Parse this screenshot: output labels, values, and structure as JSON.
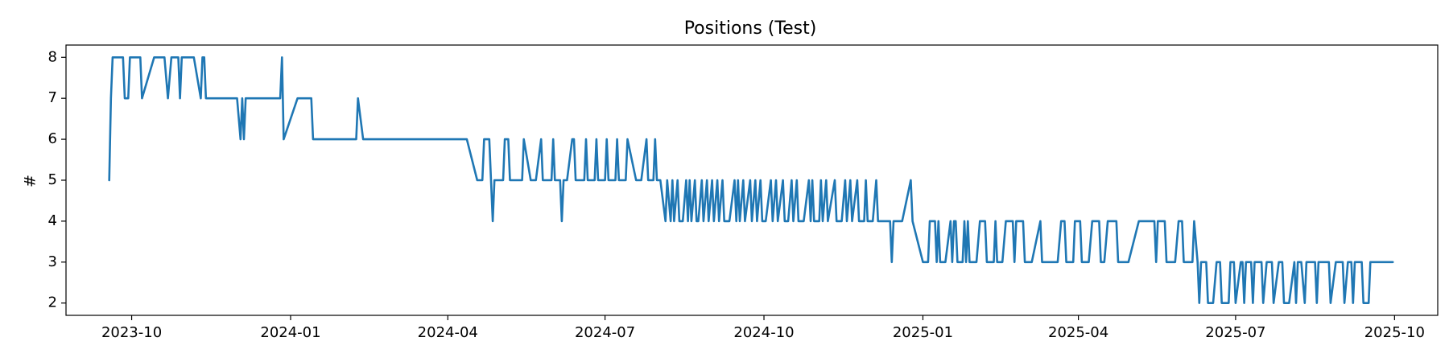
{
  "chart_data": {
    "type": "line",
    "title": "Positions (Test)",
    "xlabel": "",
    "ylabel": "#",
    "xlim": [
      "2023-08-24",
      "2025-10-26"
    ],
    "ylim": [
      1.7,
      8.3
    ],
    "grid": false,
    "legend": "none",
    "x_ticks": [
      "2023-10",
      "2024-01",
      "2024-04",
      "2024-07",
      "2024-10",
      "2025-01",
      "2025-04",
      "2025-07",
      "2025-10"
    ],
    "y_ticks": [
      "2",
      "3",
      "4",
      "5",
      "6",
      "7",
      "8"
    ],
    "series": [
      {
        "color": "#1f77b4",
        "points": [
          [
            "2023-09-18",
            5
          ],
          [
            "2023-09-19",
            7
          ],
          [
            "2023-09-20",
            8
          ],
          [
            "2023-09-26",
            8
          ],
          [
            "2023-09-27",
            7
          ],
          [
            "2023-09-29",
            7
          ],
          [
            "2023-09-30",
            8
          ],
          [
            "2023-10-06",
            8
          ],
          [
            "2023-10-07",
            7
          ],
          [
            "2023-10-14",
            8
          ],
          [
            "2023-10-20",
            8
          ],
          [
            "2023-10-22",
            7
          ],
          [
            "2023-10-24",
            8
          ],
          [
            "2023-10-28",
            8
          ],
          [
            "2023-10-29",
            7
          ],
          [
            "2023-10-30",
            8
          ],
          [
            "2023-11-06",
            8
          ],
          [
            "2023-11-10",
            7
          ],
          [
            "2023-11-11",
            8
          ],
          [
            "2023-11-12",
            8
          ],
          [
            "2023-11-13",
            7
          ],
          [
            "2023-12-01",
            7
          ],
          [
            "2023-12-03",
            6
          ],
          [
            "2023-12-04",
            7
          ],
          [
            "2023-12-05",
            6
          ],
          [
            "2023-12-06",
            7
          ],
          [
            "2023-12-26",
            7
          ],
          [
            "2023-12-27",
            8
          ],
          [
            "2023-12-28",
            6
          ],
          [
            "2024-01-05",
            7
          ],
          [
            "2024-01-13",
            7
          ],
          [
            "2024-01-14",
            6
          ],
          [
            "2024-02-08",
            6
          ],
          [
            "2024-02-09",
            7
          ],
          [
            "2024-02-12",
            6
          ],
          [
            "2024-04-12",
            6
          ],
          [
            "2024-04-18",
            5
          ],
          [
            "2024-04-21",
            5
          ],
          [
            "2024-04-22",
            6
          ],
          [
            "2024-04-25",
            6
          ],
          [
            "2024-04-27",
            4
          ],
          [
            "2024-04-28",
            5
          ],
          [
            "2024-05-03",
            5
          ],
          [
            "2024-05-04",
            6
          ],
          [
            "2024-05-06",
            6
          ],
          [
            "2024-05-07",
            5
          ],
          [
            "2024-05-14",
            5
          ],
          [
            "2024-05-15",
            6
          ],
          [
            "2024-05-19",
            5
          ],
          [
            "2024-05-22",
            5
          ],
          [
            "2024-05-25",
            6
          ],
          [
            "2024-05-26",
            5
          ],
          [
            "2024-05-31",
            5
          ],
          [
            "2024-06-01",
            6
          ],
          [
            "2024-06-02",
            5
          ],
          [
            "2024-06-05",
            5
          ],
          [
            "2024-06-06",
            4
          ],
          [
            "2024-06-07",
            5
          ],
          [
            "2024-06-09",
            5
          ],
          [
            "2024-06-12",
            6
          ],
          [
            "2024-06-13",
            6
          ],
          [
            "2024-06-14",
            5
          ],
          [
            "2024-06-19",
            5
          ],
          [
            "2024-06-20",
            6
          ],
          [
            "2024-06-21",
            5
          ],
          [
            "2024-06-25",
            5
          ],
          [
            "2024-06-26",
            6
          ],
          [
            "2024-06-27",
            5
          ],
          [
            "2024-07-01",
            5
          ],
          [
            "2024-07-02",
            6
          ],
          [
            "2024-07-03",
            5
          ],
          [
            "2024-07-07",
            5
          ],
          [
            "2024-07-08",
            6
          ],
          [
            "2024-07-09",
            5
          ],
          [
            "2024-07-13",
            5
          ],
          [
            "2024-07-14",
            6
          ],
          [
            "2024-07-19",
            5
          ],
          [
            "2024-07-22",
            5
          ],
          [
            "2024-07-25",
            6
          ],
          [
            "2024-07-26",
            5
          ],
          [
            "2024-07-29",
            5
          ],
          [
            "2024-07-30",
            6
          ],
          [
            "2024-07-31",
            5
          ],
          [
            "2024-08-02",
            5
          ],
          [
            "2024-08-05",
            4
          ],
          [
            "2024-08-06",
            5
          ],
          [
            "2024-08-08",
            4
          ],
          [
            "2024-08-09",
            5
          ],
          [
            "2024-08-10",
            4
          ],
          [
            "2024-08-12",
            5
          ],
          [
            "2024-08-13",
            4
          ],
          [
            "2024-08-15",
            4
          ],
          [
            "2024-08-17",
            5
          ],
          [
            "2024-08-18",
            4
          ],
          [
            "2024-08-19",
            5
          ],
          [
            "2024-08-20",
            4
          ],
          [
            "2024-08-22",
            5
          ],
          [
            "2024-08-23",
            4
          ],
          [
            "2024-08-24",
            4
          ],
          [
            "2024-08-26",
            5
          ],
          [
            "2024-08-27",
            4
          ],
          [
            "2024-08-29",
            5
          ],
          [
            "2024-08-30",
            4
          ],
          [
            "2024-09-01",
            5
          ],
          [
            "2024-09-02",
            4
          ],
          [
            "2024-09-04",
            5
          ],
          [
            "2024-09-05",
            4
          ],
          [
            "2024-09-07",
            5
          ],
          [
            "2024-09-08",
            4
          ],
          [
            "2024-09-11",
            4
          ],
          [
            "2024-09-14",
            5
          ],
          [
            "2024-09-15",
            4
          ],
          [
            "2024-09-16",
            5
          ],
          [
            "2024-09-17",
            4
          ],
          [
            "2024-09-19",
            5
          ],
          [
            "2024-09-20",
            4
          ],
          [
            "2024-09-23",
            5
          ],
          [
            "2024-09-24",
            4
          ],
          [
            "2024-09-26",
            5
          ],
          [
            "2024-09-27",
            4
          ],
          [
            "2024-09-29",
            5
          ],
          [
            "2024-09-30",
            4
          ],
          [
            "2024-10-02",
            4
          ],
          [
            "2024-10-05",
            5
          ],
          [
            "2024-10-06",
            4
          ],
          [
            "2024-10-08",
            5
          ],
          [
            "2024-10-09",
            4
          ],
          [
            "2024-10-12",
            5
          ],
          [
            "2024-10-13",
            4
          ],
          [
            "2024-10-15",
            4
          ],
          [
            "2024-10-17",
            5
          ],
          [
            "2024-10-18",
            4
          ],
          [
            "2024-10-20",
            5
          ],
          [
            "2024-10-21",
            4
          ],
          [
            "2024-10-24",
            4
          ],
          [
            "2024-10-27",
            5
          ],
          [
            "2024-10-28",
            4
          ],
          [
            "2024-10-29",
            5
          ],
          [
            "2024-10-30",
            4
          ],
          [
            "2024-11-02",
            4
          ],
          [
            "2024-11-03",
            5
          ],
          [
            "2024-11-04",
            4
          ],
          [
            "2024-11-06",
            5
          ],
          [
            "2024-11-07",
            4
          ],
          [
            "2024-11-11",
            5
          ],
          [
            "2024-11-12",
            4
          ],
          [
            "2024-11-15",
            4
          ],
          [
            "2024-11-17",
            5
          ],
          [
            "2024-11-18",
            4
          ],
          [
            "2024-11-20",
            5
          ],
          [
            "2024-11-21",
            4
          ],
          [
            "2024-11-24",
            5
          ],
          [
            "2024-11-25",
            4
          ],
          [
            "2024-11-28",
            4
          ],
          [
            "2024-11-29",
            5
          ],
          [
            "2024-11-30",
            4
          ],
          [
            "2024-12-03",
            4
          ],
          [
            "2024-12-05",
            5
          ],
          [
            "2024-12-06",
            4
          ],
          [
            "2024-12-13",
            4
          ],
          [
            "2024-12-14",
            3
          ],
          [
            "2024-12-15",
            4
          ],
          [
            "2024-12-20",
            4
          ],
          [
            "2024-12-25",
            5
          ],
          [
            "2024-12-26",
            4
          ],
          [
            "2025-01-01",
            3
          ],
          [
            "2025-01-04",
            3
          ],
          [
            "2025-01-05",
            4
          ],
          [
            "2025-01-08",
            4
          ],
          [
            "2025-01-09",
            3
          ],
          [
            "2025-01-10",
            4
          ],
          [
            "2025-01-11",
            3
          ],
          [
            "2025-01-14",
            3
          ],
          [
            "2025-01-17",
            4
          ],
          [
            "2025-01-18",
            3
          ],
          [
            "2025-01-19",
            4
          ],
          [
            "2025-01-20",
            4
          ],
          [
            "2025-01-21",
            3
          ],
          [
            "2025-01-24",
            3
          ],
          [
            "2025-01-25",
            4
          ],
          [
            "2025-01-26",
            3
          ],
          [
            "2025-01-27",
            4
          ],
          [
            "2025-01-28",
            3
          ],
          [
            "2025-02-01",
            3
          ],
          [
            "2025-02-03",
            4
          ],
          [
            "2025-02-06",
            4
          ],
          [
            "2025-02-07",
            3
          ],
          [
            "2025-02-11",
            3
          ],
          [
            "2025-02-12",
            4
          ],
          [
            "2025-02-13",
            3
          ],
          [
            "2025-02-16",
            3
          ],
          [
            "2025-02-18",
            4
          ],
          [
            "2025-02-22",
            4
          ],
          [
            "2025-02-23",
            3
          ],
          [
            "2025-02-24",
            4
          ],
          [
            "2025-02-28",
            4
          ],
          [
            "2025-03-01",
            3
          ],
          [
            "2025-03-05",
            3
          ],
          [
            "2025-03-10",
            4
          ],
          [
            "2025-03-11",
            3
          ],
          [
            "2025-03-20",
            3
          ],
          [
            "2025-03-22",
            4
          ],
          [
            "2025-03-24",
            4
          ],
          [
            "2025-03-25",
            3
          ],
          [
            "2025-03-29",
            3
          ],
          [
            "2025-03-30",
            4
          ],
          [
            "2025-04-02",
            4
          ],
          [
            "2025-04-03",
            3
          ],
          [
            "2025-04-07",
            3
          ],
          [
            "2025-04-09",
            4
          ],
          [
            "2025-04-13",
            4
          ],
          [
            "2025-04-14",
            3
          ],
          [
            "2025-04-16",
            3
          ],
          [
            "2025-04-18",
            4
          ],
          [
            "2025-04-23",
            4
          ],
          [
            "2025-04-24",
            3
          ],
          [
            "2025-04-30",
            3
          ],
          [
            "2025-05-06",
            4
          ],
          [
            "2025-05-15",
            4
          ],
          [
            "2025-05-16",
            3
          ],
          [
            "2025-05-17",
            4
          ],
          [
            "2025-05-21",
            4
          ],
          [
            "2025-05-22",
            3
          ],
          [
            "2025-05-27",
            3
          ],
          [
            "2025-05-29",
            4
          ],
          [
            "2025-05-31",
            4
          ],
          [
            "2025-06-01",
            3
          ],
          [
            "2025-06-06",
            3
          ],
          [
            "2025-06-07",
            4
          ],
          [
            "2025-06-09",
            3
          ],
          [
            "2025-06-10",
            2
          ],
          [
            "2025-06-11",
            3
          ],
          [
            "2025-06-14",
            3
          ],
          [
            "2025-06-15",
            2
          ],
          [
            "2025-06-18",
            2
          ],
          [
            "2025-06-20",
            3
          ],
          [
            "2025-06-22",
            3
          ],
          [
            "2025-06-23",
            2
          ],
          [
            "2025-06-27",
            2
          ],
          [
            "2025-06-28",
            3
          ],
          [
            "2025-06-30",
            3
          ],
          [
            "2025-07-01",
            2
          ],
          [
            "2025-07-04",
            3
          ],
          [
            "2025-07-05",
            3
          ],
          [
            "2025-07-06",
            2
          ],
          [
            "2025-07-07",
            3
          ],
          [
            "2025-07-10",
            3
          ],
          [
            "2025-07-11",
            2
          ],
          [
            "2025-07-12",
            3
          ],
          [
            "2025-07-16",
            3
          ],
          [
            "2025-07-17",
            2
          ],
          [
            "2025-07-19",
            3
          ],
          [
            "2025-07-22",
            3
          ],
          [
            "2025-07-23",
            2
          ],
          [
            "2025-07-26",
            3
          ],
          [
            "2025-07-28",
            3
          ],
          [
            "2025-07-29",
            2
          ],
          [
            "2025-08-01",
            2
          ],
          [
            "2025-08-04",
            3
          ],
          [
            "2025-08-05",
            2
          ],
          [
            "2025-08-06",
            3
          ],
          [
            "2025-08-08",
            3
          ],
          [
            "2025-08-10",
            2
          ],
          [
            "2025-08-11",
            3
          ],
          [
            "2025-08-16",
            3
          ],
          [
            "2025-08-17",
            2
          ],
          [
            "2025-08-18",
            3
          ],
          [
            "2025-08-24",
            3
          ],
          [
            "2025-08-25",
            2
          ],
          [
            "2025-08-28",
            3
          ],
          [
            "2025-09-01",
            3
          ],
          [
            "2025-09-02",
            2
          ],
          [
            "2025-09-04",
            3
          ],
          [
            "2025-09-06",
            3
          ],
          [
            "2025-09-07",
            2
          ],
          [
            "2025-09-08",
            3
          ],
          [
            "2025-09-12",
            3
          ],
          [
            "2025-09-13",
            2
          ],
          [
            "2025-09-16",
            2
          ],
          [
            "2025-09-17",
            3
          ],
          [
            "2025-09-30",
            3
          ]
        ]
      }
    ]
  }
}
